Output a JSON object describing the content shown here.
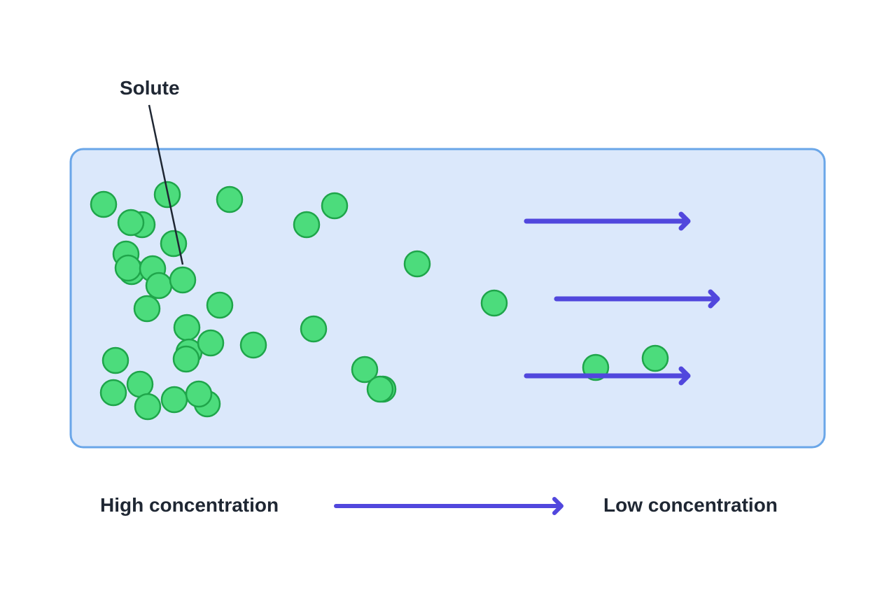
{
  "labels": {
    "solute": "Solute",
    "high_concentration": "High concentration",
    "low_concentration": "Low concentration"
  },
  "colors": {
    "container_fill": "#dbe8fb",
    "container_stroke": "#6aa6e8",
    "particle_fill": "#4cdc7c",
    "particle_stroke": "#1fa54a",
    "arrow": "#5147dd",
    "leader_line": "#1f2733",
    "text": "#1f2733"
  },
  "icons": {
    "particle": "solute-particle-icon",
    "arrow": "right-arrow-icon"
  }
}
